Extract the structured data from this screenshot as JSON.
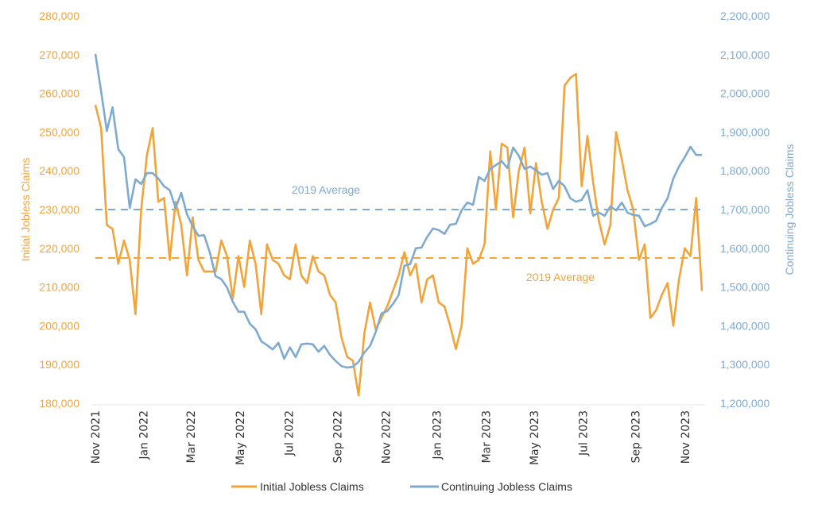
{
  "chart_data": {
    "type": "line",
    "title": "",
    "xlabel": "",
    "ylabel": "Initial Jobless Claims",
    "y2label": "Continuing Jobless Claims",
    "ylim": [
      180000,
      280000
    ],
    "y2lim": [
      1200000,
      2200000
    ],
    "yticks": [
      "180,000",
      "190,000",
      "200,000",
      "210,000",
      "220,000",
      "230,000",
      "240,000",
      "250,000",
      "260,000",
      "270,000",
      "280,000"
    ],
    "y2ticks": [
      "1,200,000",
      "1,300,000",
      "1,400,000",
      "1,500,000",
      "1,600,000",
      "1,700,000",
      "1,800,000",
      "1,900,000",
      "2,000,000",
      "2,100,000",
      "2,200,000"
    ],
    "xticks": [
      "Nov 2021",
      "Jan 2022",
      "Mar 2022",
      "May 2022",
      "Jul 2022",
      "Sep 2022",
      "Nov 2022",
      "Jan 2023",
      "Mar 2023",
      "May 2023",
      "Jul 2023",
      "Sep 2023",
      "Nov 2023"
    ],
    "xtick_week_index": [
      0,
      8.4,
      16.7,
      25.3,
      33.8,
      42.3,
      50.8,
      59.7,
      68.3,
      76.7,
      85.2,
      94.4,
      103.1
    ],
    "frequency": "weekly",
    "values_unit": "thousands",
    "legend_position": "bottom",
    "grid": false,
    "colors": {
      "initial": "#F0A43A",
      "continuing": "#7EAAD2"
    },
    "series": [
      {
        "name": "Initial Jobless Claims",
        "axis": "left",
        "values": [
          257,
          251,
          226,
          225,
          216,
          222,
          217,
          203,
          230,
          244,
          251,
          232,
          233,
          217,
          232,
          226,
          213,
          228,
          217,
          214,
          214,
          214,
          222,
          218,
          207,
          218,
          210,
          222,
          216,
          203,
          221,
          217,
          216,
          213,
          212,
          221,
          213,
          211,
          218,
          214,
          213,
          208,
          206,
          197,
          192,
          191,
          182,
          198,
          206,
          199,
          202,
          205,
          209,
          213,
          219,
          213,
          216,
          206,
          212,
          213,
          206,
          205,
          200,
          194,
          200,
          220,
          216,
          217,
          221,
          245,
          230,
          247,
          246,
          228,
          240,
          246,
          229,
          242,
          232,
          225,
          230,
          233,
          262,
          264,
          265,
          236,
          249,
          237,
          227,
          221,
          226,
          250,
          243,
          235,
          230,
          217,
          221,
          202,
          204,
          208,
          211,
          200,
          212,
          220,
          218,
          233,
          209
        ]
      },
      {
        "name": "Continuing Jobless Claims",
        "axis": "right",
        "values": [
          2102,
          2005,
          1903,
          1964,
          1856,
          1835,
          1704,
          1778,
          1766,
          1794,
          1794,
          1780,
          1760,
          1750,
          1704,
          1743,
          1688,
          1657,
          1632,
          1634,
          1589,
          1528,
          1520,
          1499,
          1462,
          1436,
          1436,
          1405,
          1391,
          1360,
          1350,
          1339,
          1356,
          1315,
          1344,
          1319,
          1352,
          1354,
          1352,
          1333,
          1348,
          1325,
          1309,
          1296,
          1292,
          1294,
          1307,
          1331,
          1348,
          1384,
          1432,
          1438,
          1456,
          1479,
          1555,
          1559,
          1600,
          1602,
          1630,
          1651,
          1647,
          1637,
          1661,
          1663,
          1698,
          1718,
          1712,
          1784,
          1774,
          1805,
          1815,
          1825,
          1807,
          1860,
          1839,
          1805,
          1811,
          1801,
          1790,
          1794,
          1753,
          1774,
          1760,
          1729,
          1720,
          1725,
          1750,
          1684,
          1692,
          1684,
          1708,
          1698,
          1718,
          1692,
          1686,
          1684,
          1657,
          1663,
          1671,
          1704,
          1729,
          1780,
          1811,
          1835,
          1862,
          1841,
          1841
        ]
      }
    ],
    "reference_lines": [
      {
        "label": "2019 Average",
        "axis": "right",
        "value": 1700
      },
      {
        "label": "2019 Average",
        "axis": "left",
        "value": 217.5
      }
    ]
  }
}
